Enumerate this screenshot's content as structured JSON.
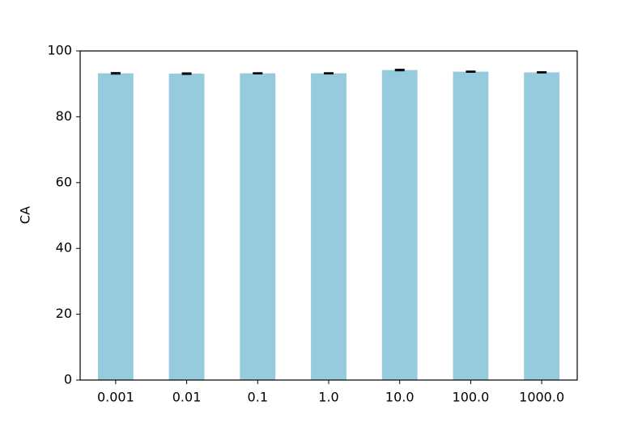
{
  "chart_data": {
    "type": "bar",
    "ylabel": "CA",
    "categories": [
      "0.001",
      "0.01",
      "0.1",
      "1.0",
      "10.0",
      "100.0",
      "1000.0"
    ],
    "values": [
      93.2,
      93.1,
      93.2,
      93.2,
      94.2,
      93.7,
      93.5
    ],
    "errors": [
      0.2,
      0.2,
      0.15,
      0.15,
      0.2,
      0.15,
      0.15
    ],
    "color": "#96cbdd",
    "error_color": "#000000",
    "ylim": [
      0,
      100
    ],
    "yticks": [
      0,
      20,
      40,
      60,
      80,
      100
    ],
    "grid": false
  }
}
